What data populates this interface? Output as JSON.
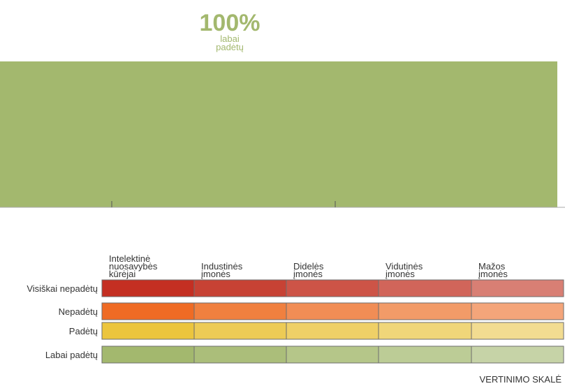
{
  "chart_data": [
    {
      "type": "bar",
      "categories": [
        "labai padėtų"
      ],
      "values": [
        100
      ],
      "data_labels": [
        "100%"
      ],
      "unit": "%",
      "ylim": [
        0,
        100
      ],
      "color": "#a3b86e"
    },
    {
      "type": "heatmap",
      "columns": [
        [
          "Intelektinė",
          "nuosavybės",
          "kūrėjai"
        ],
        [
          "Industinės",
          "įmonės"
        ],
        [
          "Didelės",
          "įmonės"
        ],
        [
          "Vidutinės",
          "įmonės"
        ],
        [
          "Mažos",
          "įmonės"
        ]
      ],
      "rows": [
        {
          "label": "Visiškai nepadėtų",
          "colors": [
            "#c42f22",
            "#c74234",
            "#cd5447",
            "#d1655a",
            "#d87f74"
          ]
        },
        {
          "label": "Nepadėtų",
          "colors": [
            "#ef6b24",
            "#f0803f",
            "#f18d55",
            "#f29b68",
            "#f4a57a"
          ]
        },
        {
          "label": "Padėtų",
          "colors": [
            "#ecc53d",
            "#edcb55",
            "#efd067",
            "#f0d679",
            "#f2dc91"
          ]
        },
        {
          "label": "Labai padėtų",
          "colors": [
            "#a3b86e",
            "#abbe7a",
            "#b5c689",
            "#bccc96",
            "#c6d3a7"
          ]
        }
      ],
      "footer": "VERTINIMO SKALĖ"
    }
  ]
}
